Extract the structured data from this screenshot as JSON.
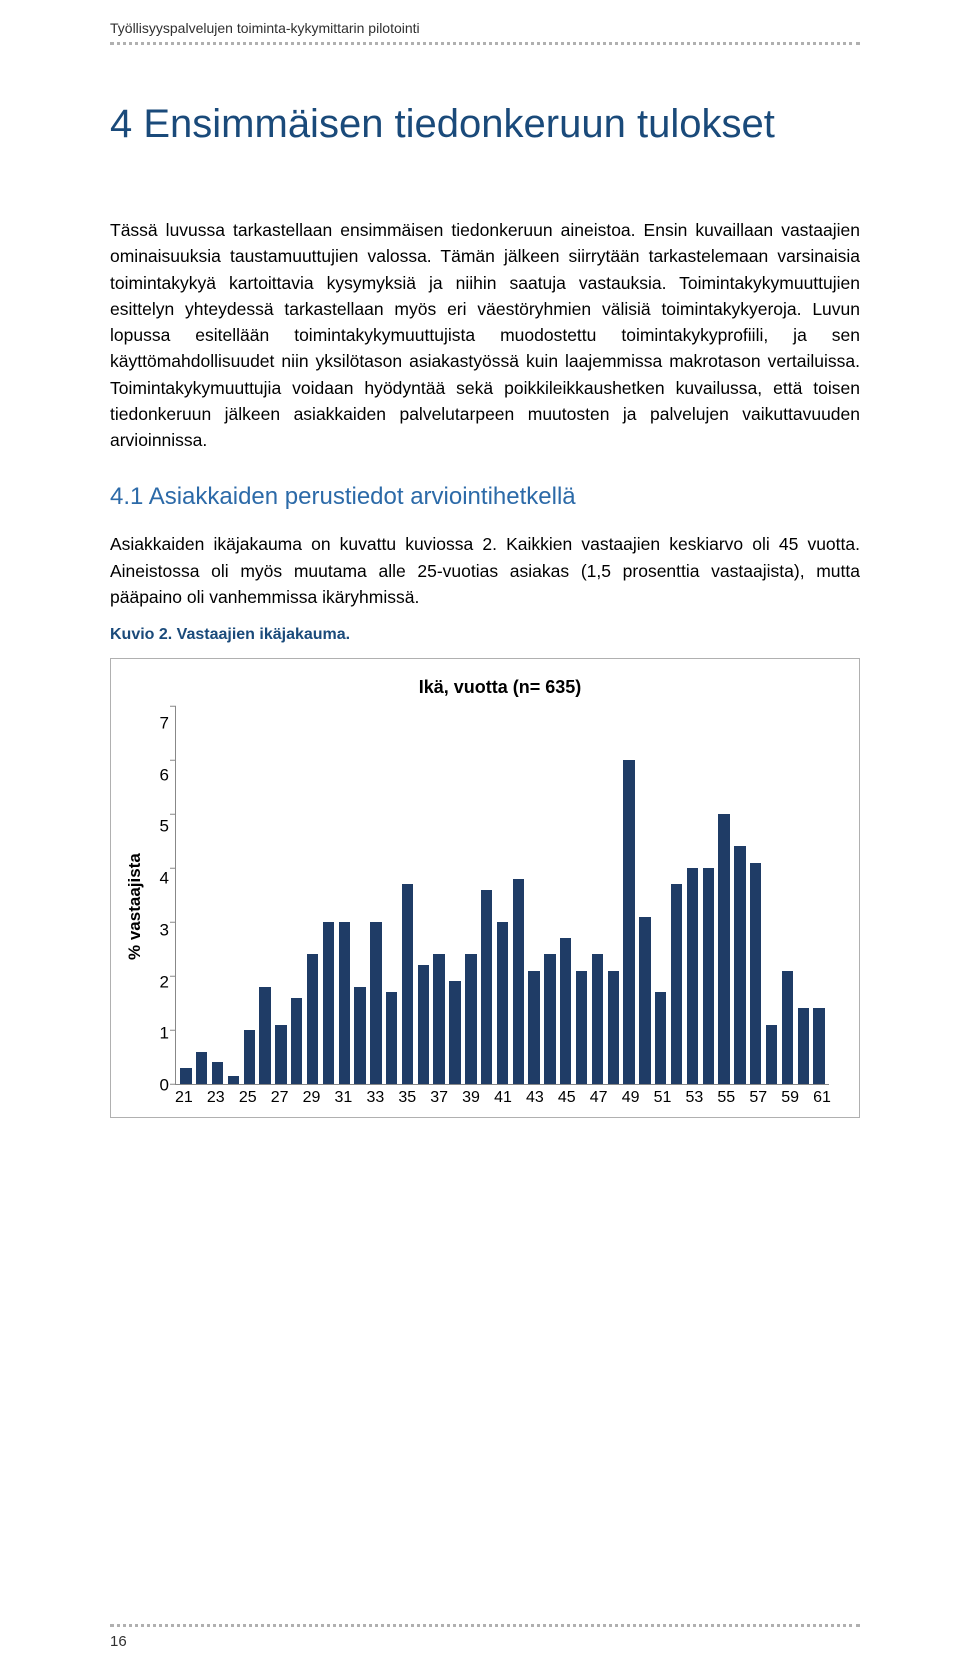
{
  "running_header": "Työllisyyspalvelujen toiminta-kykymittarin pilotointi",
  "chapter_title": "4 Ensimmäisen tiedonkeruun tulokset",
  "body_paragraph": "Tässä luvussa tarkastellaan ensimmäisen tiedonkeruun aineistoa. Ensin kuvaillaan vastaajien ominaisuuksia taustamuuttujien valossa. Tämän jälkeen siirrytään tarkastelemaan varsinaisia toimintakykyä kartoittavia kysymyksiä ja niihin saatuja vastauksia. Toimintakykymuuttujien esittelyn yhteydessä tarkastellaan myös eri väestöryhmien välisiä toimintakykyeroja. Luvun lopussa esitellään toimintakykymuuttujista muodostettu toimintakykyprofiili, ja sen käyttömahdollisuudet niin yksilötason asiakastyössä kuin laajemmissa makrotason vertailuissa. Toimintakykymuuttujia voidaan hyödyntää sekä poikkileikkaushetken kuvailussa, että toisen tiedonkeruun jälkeen asiakkaiden palvelutarpeen muutosten ja palvelujen vaikuttavuuden arvioinnissa.",
  "section_heading": "4.1 Asiakkaiden perustiedot arviointihetkellä",
  "section_paragraph": "Asiakkaiden ikäjakauma on kuvattu kuviossa 2. Kaikkien vastaajien keskiarvo oli 45 vuotta. Aineistossa oli myös muutama alle 25-vuotias asiakas (1,5 prosenttia vastaajista), mutta pääpaino oli vanhemmissa ikäryhmissä.",
  "figure_caption": "Kuvio 2. Vastaajien ikäjakauma.",
  "chart": {
    "title": "Ikä, vuotta (n= 635)",
    "y_label": "% vastaajista",
    "y_ticks": [
      0,
      1,
      2,
      3,
      4,
      5,
      6,
      7
    ],
    "y_max": 7,
    "x_tick_labels": [
      "21",
      "23",
      "25",
      "27",
      "29",
      "31",
      "33",
      "35",
      "37",
      "39",
      "41",
      "43",
      "45",
      "47",
      "49",
      "51",
      "53",
      "55",
      "57",
      "59",
      "61"
    ],
    "bars": [
      {
        "age": 21,
        "v": 0.3
      },
      {
        "age": 22,
        "v": 0.6
      },
      {
        "age": 23,
        "v": 0.4
      },
      {
        "age": 24,
        "v": 0.15
      },
      {
        "age": 25,
        "v": 1.0
      },
      {
        "age": 26,
        "v": 1.8
      },
      {
        "age": 27,
        "v": 1.1
      },
      {
        "age": 28,
        "v": 1.6
      },
      {
        "age": 29,
        "v": 2.4
      },
      {
        "age": 30,
        "v": 3.0
      },
      {
        "age": 31,
        "v": 3.0
      },
      {
        "age": 32,
        "v": 1.8
      },
      {
        "age": 33,
        "v": 3.0
      },
      {
        "age": 34,
        "v": 1.7
      },
      {
        "age": 35,
        "v": 3.7
      },
      {
        "age": 36,
        "v": 2.2
      },
      {
        "age": 37,
        "v": 2.4
      },
      {
        "age": 38,
        "v": 1.9
      },
      {
        "age": 39,
        "v": 2.4
      },
      {
        "age": 40,
        "v": 3.6
      },
      {
        "age": 41,
        "v": 3.0
      },
      {
        "age": 42,
        "v": 3.8
      },
      {
        "age": 43,
        "v": 2.1
      },
      {
        "age": 44,
        "v": 2.4
      },
      {
        "age": 45,
        "v": 2.7
      },
      {
        "age": 46,
        "v": 2.1
      },
      {
        "age": 47,
        "v": 2.4
      },
      {
        "age": 48,
        "v": 2.1
      },
      {
        "age": 49,
        "v": 6.0
      },
      {
        "age": 50,
        "v": 3.1
      },
      {
        "age": 51,
        "v": 1.7
      },
      {
        "age": 52,
        "v": 3.7
      },
      {
        "age": 53,
        "v": 4.0
      },
      {
        "age": 54,
        "v": 4.0
      },
      {
        "age": 55,
        "v": 5.0
      },
      {
        "age": 56,
        "v": 4.4
      },
      {
        "age": 57,
        "v": 4.1
      },
      {
        "age": 58,
        "v": 1.1
      },
      {
        "age": 59,
        "v": 2.1
      },
      {
        "age": 60,
        "v": 1.4
      },
      {
        "age": 61,
        "v": 1.4
      }
    ],
    "bar_color": "#1f3c66",
    "axis_color": "#888888",
    "border_color": "#b0b0b0",
    "background": "#ffffff"
  },
  "page_number": "16"
}
